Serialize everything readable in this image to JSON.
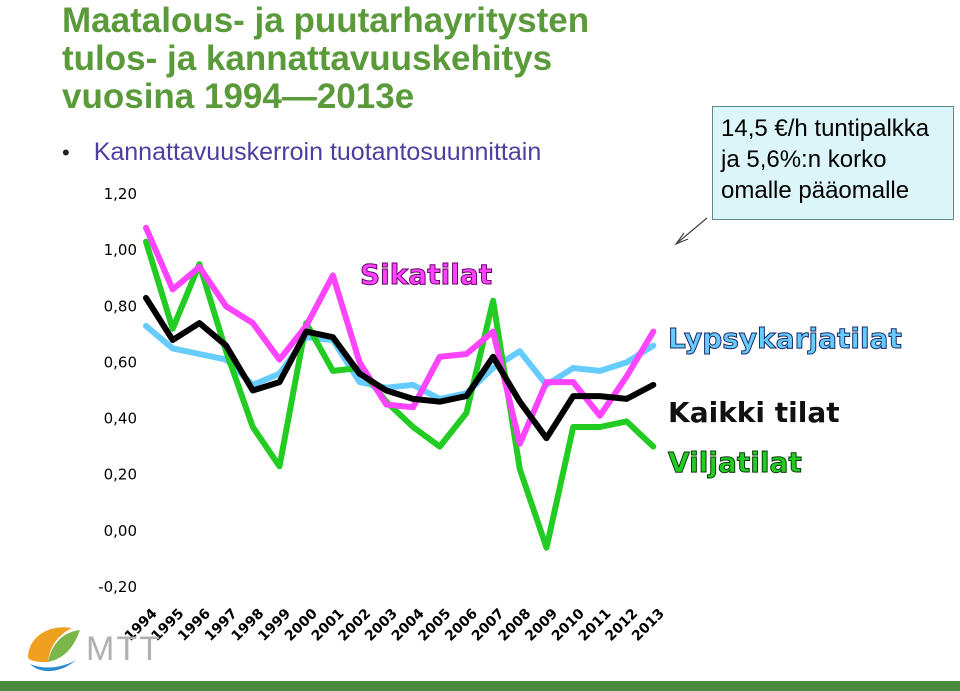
{
  "title": {
    "line1": "Maatalous- ja puutarhayritysten",
    "line2": "tulos- ja kannattavuuskehitys",
    "line3": "vuosina 1994—2013e"
  },
  "bullet": {
    "text": "Kannattavuuskerroin tuotantosuunnittain"
  },
  "note": {
    "line1": "14,5 €/h tuntipalkka",
    "line2": "ja 5,6%:n korko",
    "line3": "omalle pääomalle"
  },
  "logo": {
    "text": "MTT"
  },
  "colors": {
    "title": "#5a9a3a",
    "sikatilat": "#ff44ff",
    "lypsykarjatilat": "#66ccff",
    "kaikki_tilat": "#000000",
    "viljatilat": "#22cc22"
  },
  "chart_data": {
    "type": "line",
    "x": [
      "1994",
      "1995",
      "1996",
      "1997",
      "1998",
      "1999",
      "2000",
      "2001",
      "2002",
      "2003",
      "2004",
      "2005",
      "2006",
      "2007",
      "2008",
      "2009",
      "2010",
      "2011",
      "2012",
      "2013"
    ],
    "y_ticks": [
      "1,20",
      "1,00",
      "0,80",
      "0,60",
      "0,40",
      "0,20",
      "0,00",
      "-0,20"
    ],
    "ylim": [
      -0.2,
      1.2
    ],
    "grid": false,
    "series": [
      {
        "key": "lypsy",
        "name": "Lypsykarjatilat",
        "color": "#66ccff",
        "values": [
          0.73,
          0.65,
          0.63,
          0.61,
          0.52,
          0.56,
          0.69,
          0.68,
          0.53,
          0.51,
          0.52,
          0.47,
          0.49,
          0.58,
          0.64,
          0.52,
          0.58,
          0.57,
          0.6,
          0.66
        ]
      },
      {
        "key": "vilja",
        "name": "Viljatilat",
        "color": "#22cc22",
        "values": [
          1.03,
          0.72,
          0.95,
          0.64,
          0.37,
          0.23,
          0.74,
          0.57,
          0.58,
          0.46,
          0.37,
          0.3,
          0.42,
          0.82,
          0.22,
          -0.06,
          0.37,
          0.37,
          0.39,
          0.3
        ]
      },
      {
        "key": "sika",
        "name": "Sikatilat",
        "color": "#ff44ff",
        "values": [
          1.08,
          0.86,
          0.94,
          0.8,
          0.74,
          0.61,
          0.73,
          0.91,
          0.6,
          0.45,
          0.44,
          0.62,
          0.63,
          0.71,
          0.31,
          0.53,
          0.53,
          0.41,
          0.55,
          0.71
        ]
      },
      {
        "key": "kaikki",
        "name": "Kaikki tilat",
        "color": "#000000",
        "values": [
          0.83,
          0.68,
          0.74,
          0.66,
          0.5,
          0.53,
          0.71,
          0.69,
          0.56,
          0.5,
          0.47,
          0.46,
          0.48,
          0.62,
          0.46,
          0.33,
          0.48,
          0.48,
          0.47,
          0.52
        ]
      }
    ]
  }
}
